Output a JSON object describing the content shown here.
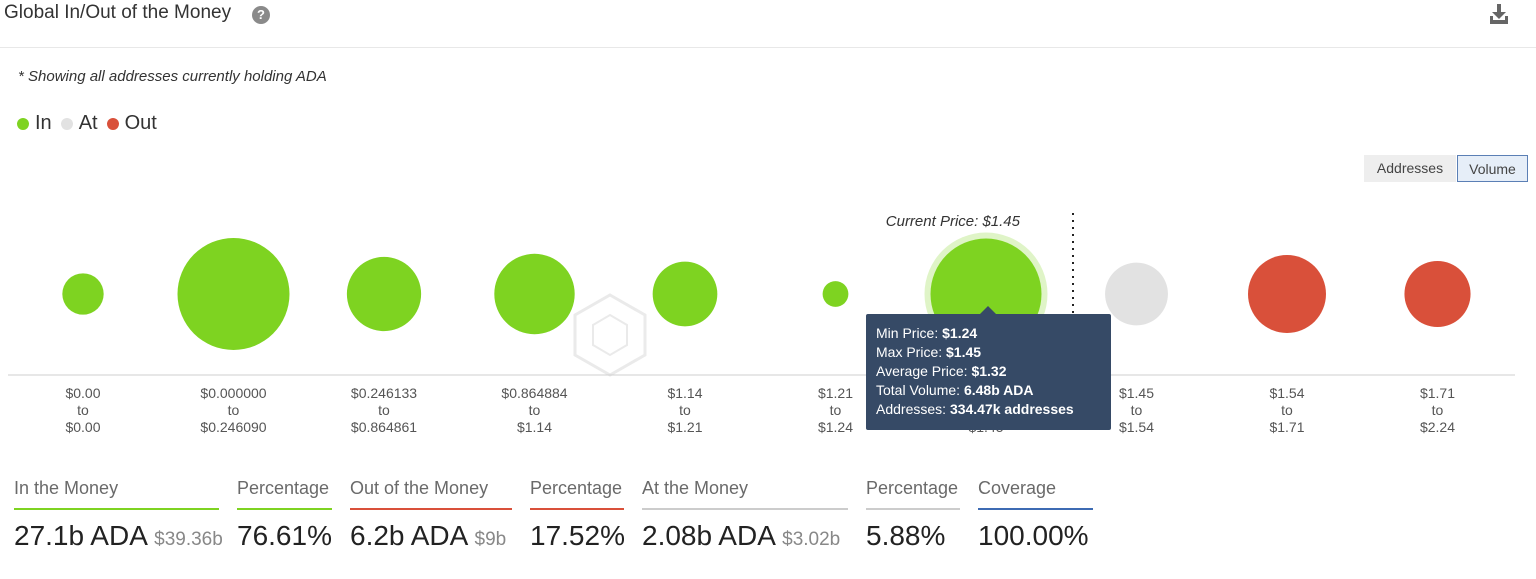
{
  "header": {
    "title": "Global In/Out of the Money",
    "help_icon": "question-circle-icon",
    "download_icon": "download-icon"
  },
  "note": "* Showing all addresses currently holding ADA",
  "legend": [
    {
      "label": "In",
      "color": "#7ed321"
    },
    {
      "label": "At",
      "color": "#e2e2e2"
    },
    {
      "label": "Out",
      "color": "#d9503a"
    }
  ],
  "toggles": {
    "addresses": "Addresses",
    "volume": "Volume",
    "active": "Volume"
  },
  "chart_data": {
    "type": "bubble",
    "metric": "Volume",
    "current_price_label": "Current Price: $1.45",
    "categories": [
      {
        "from": "$0.00",
        "to_word": "to",
        "to": "$0.00",
        "status": "in",
        "volume_b": 0.9
      },
      {
        "from": "$0.000000",
        "to_word": "to",
        "to": "$0.246090",
        "status": "in",
        "volume_b": 6.6
      },
      {
        "from": "$0.246133",
        "to_word": "to",
        "to": "$0.864861",
        "status": "in",
        "volume_b": 2.9
      },
      {
        "from": "$0.864884",
        "to_word": "to",
        "to": "$1.14",
        "status": "in",
        "volume_b": 3.4
      },
      {
        "from": "$1.14",
        "to_word": "to",
        "to": "$1.21",
        "status": "in",
        "volume_b": 2.2
      },
      {
        "from": "$1.21",
        "to_word": "to",
        "to": "$1.24",
        "status": "in",
        "volume_b": 0.35
      },
      {
        "from": "$1.24",
        "to_word": "to",
        "to": "$1.45",
        "status": "in",
        "volume_b": 6.48,
        "highlighted": true
      },
      {
        "from": "$1.45",
        "to_word": "to",
        "to": "$1.54",
        "status": "at",
        "volume_b": 2.08
      },
      {
        "from": "$1.54",
        "to_word": "to",
        "to": "$1.71",
        "status": "out",
        "volume_b": 3.2
      },
      {
        "from": "$1.71",
        "to_word": "to",
        "to": "$2.24",
        "status": "out",
        "volume_b": 2.3
      }
    ],
    "colors": {
      "in": "#7ed321",
      "at": "#e2e2e2",
      "out": "#d9503a"
    },
    "tooltip": {
      "min_price_label": "Min Price:",
      "min_price": "$1.24",
      "max_price_label": "Max Price:",
      "max_price": "$1.45",
      "avg_price_label": "Average Price:",
      "avg_price": "$1.32",
      "total_volume_label": "Total Volume:",
      "total_volume": "6.48b ADA",
      "addresses_label": "Addresses:",
      "addresses": "334.47k addresses"
    }
  },
  "summary": [
    {
      "label": "In the Money",
      "value": "27.1b ADA",
      "sub": "$39.36b",
      "color": "#7ed321"
    },
    {
      "label": "Percentage",
      "value": "76.61%",
      "sub": "",
      "color": "#7ed321"
    },
    {
      "label": "Out of the Money",
      "value": "6.2b ADA",
      "sub": "$9b",
      "color": "#d9503a"
    },
    {
      "label": "Percentage",
      "value": "17.52%",
      "sub": "",
      "color": "#d9503a"
    },
    {
      "label": "At the Money",
      "value": "2.08b ADA",
      "sub": "$3.02b",
      "color": "#cccccc"
    },
    {
      "label": "Percentage",
      "value": "5.88%",
      "sub": "",
      "color": "#cccccc"
    },
    {
      "label": "Coverage",
      "value": "100.00%",
      "sub": "",
      "color": "#3d6bb3"
    }
  ]
}
